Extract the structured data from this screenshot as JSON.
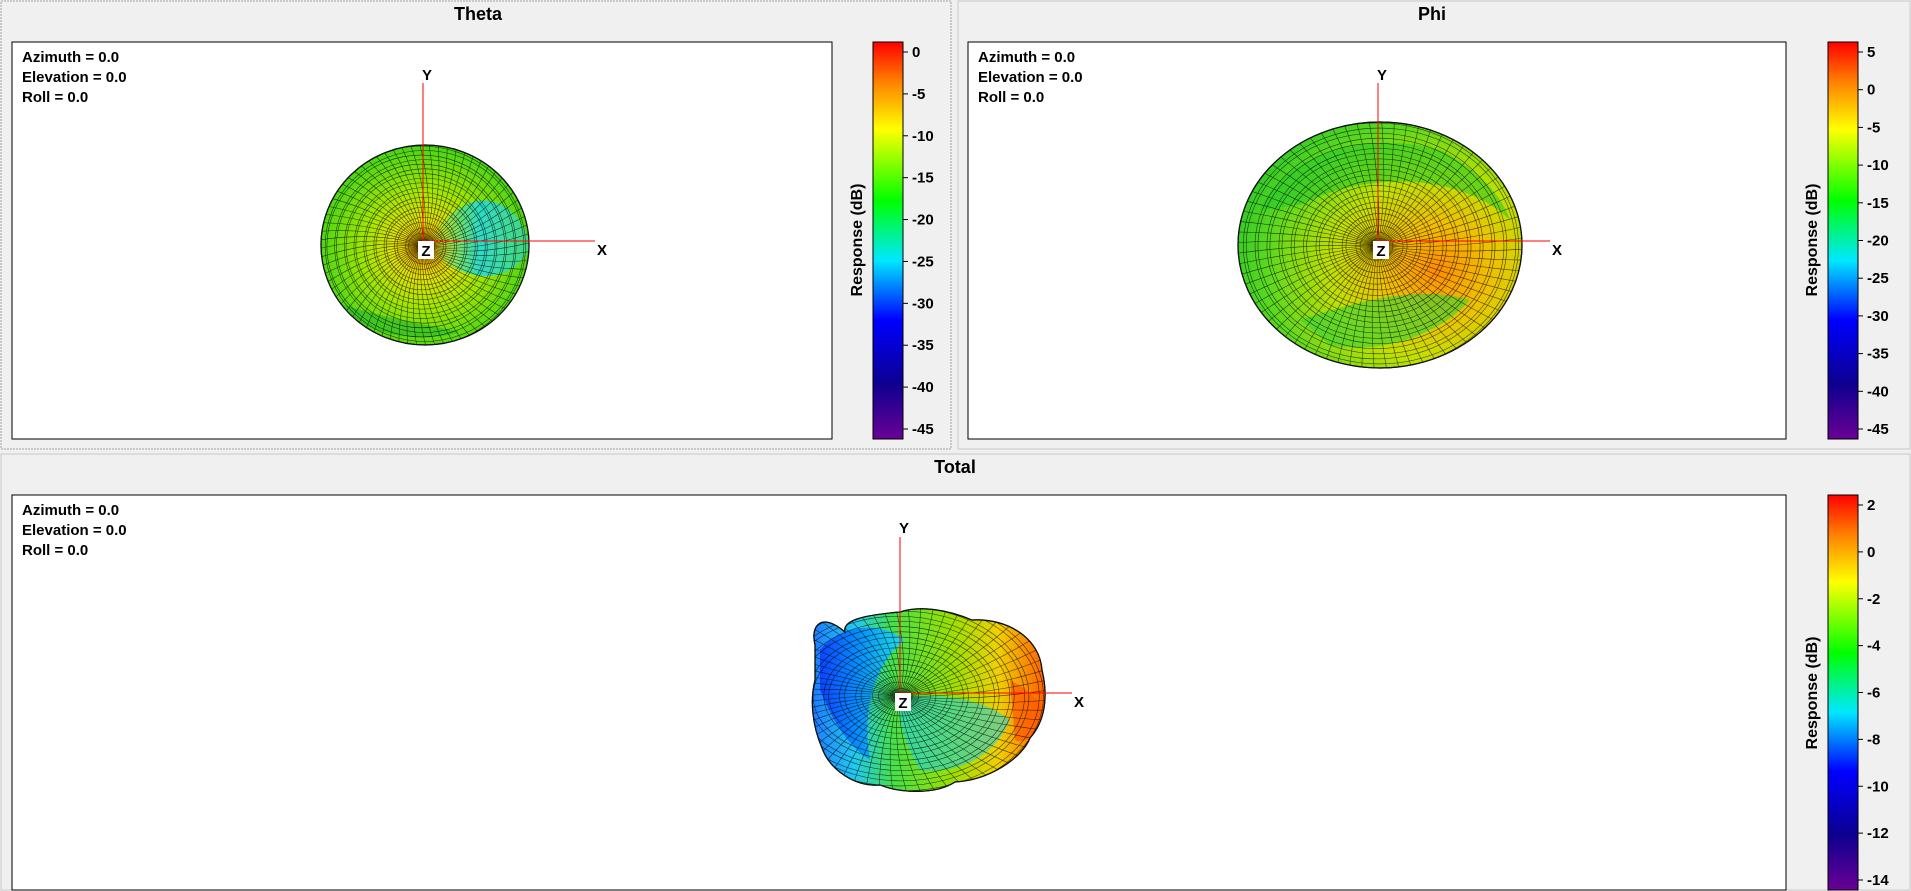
{
  "colors": {
    "background": "#f0f0f0",
    "plot_background": "#ffffff",
    "axis_line": "#ff0000",
    "colormap": [
      "#6a0094",
      "#0c0090",
      "#0000ff",
      "#00e8ff",
      "#00ff00",
      "#ffff00",
      "#ff8000",
      "#ff0000"
    ]
  },
  "panels": {
    "theta": {
      "title": "Theta",
      "orientation": {
        "azimuth": "Azimuth = 0.0",
        "elevation": "Elevation = 0.0",
        "roll": "Roll = 0.0"
      },
      "axes": {
        "x": "X",
        "y": "Y",
        "z": "Z"
      },
      "colorbar": {
        "label": "Response  (dB)",
        "ticks": [
          "0",
          "-5",
          "-10",
          "-15",
          "-20",
          "-25",
          "-30",
          "-35",
          "-40",
          "-45"
        ]
      }
    },
    "phi": {
      "title": "Phi",
      "orientation": {
        "azimuth": "Azimuth = 0.0",
        "elevation": "Elevation = 0.0",
        "roll": "Roll = 0.0"
      },
      "axes": {
        "x": "X",
        "y": "Y",
        "z": "Z"
      },
      "colorbar": {
        "label": "Response  (dB)",
        "ticks": [
          "5",
          "0",
          "-5",
          "-10",
          "-15",
          "-20",
          "-25",
          "-30",
          "-35",
          "-40",
          "-45"
        ]
      }
    },
    "total": {
      "title": "Total",
      "orientation": {
        "azimuth": "Azimuth = 0.0",
        "elevation": "Elevation = 0.0",
        "roll": "Roll = 0.0"
      },
      "axes": {
        "x": "X",
        "y": "Y",
        "z": "Z"
      },
      "colorbar": {
        "label": "Response  (dB)",
        "ticks": [
          "2",
          "0",
          "-2",
          "-4",
          "-6",
          "-8",
          "-10",
          "-12",
          "-14"
        ]
      }
    }
  }
}
